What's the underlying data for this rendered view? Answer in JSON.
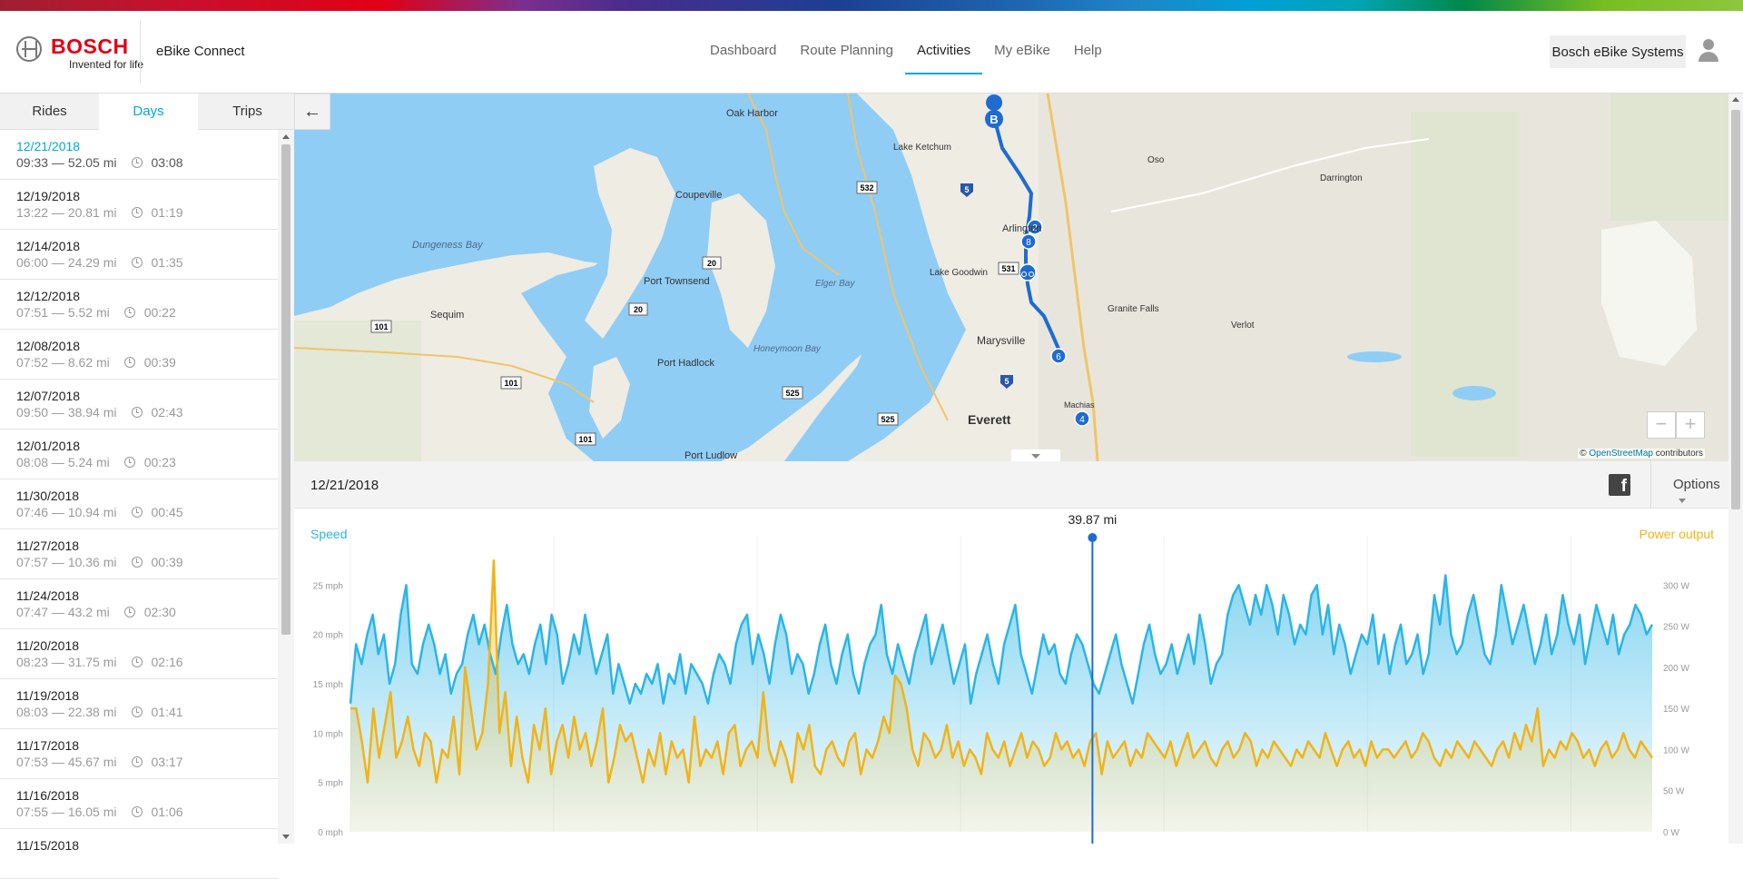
{
  "header": {
    "brand": "BOSCH",
    "tagline": "Invented for life",
    "app_name": "eBike Connect",
    "nav": [
      {
        "label": "Dashboard"
      },
      {
        "label": "Route Planning"
      },
      {
        "label": "Activities",
        "active": true
      },
      {
        "label": "My eBike"
      },
      {
        "label": "Help"
      }
    ],
    "user_button": "Bosch eBike Systems"
  },
  "sidebar": {
    "tabs": [
      {
        "label": "Rides"
      },
      {
        "label": "Days",
        "active": true
      },
      {
        "label": "Trips"
      }
    ],
    "items": [
      {
        "date": "12/21/2018",
        "info": "09:33 — 52.05 mi",
        "duration": "03:08",
        "active": true
      },
      {
        "date": "12/19/2018",
        "info": "13:22 — 20.81 mi",
        "duration": "01:19"
      },
      {
        "date": "12/14/2018",
        "info": "06:00 — 24.29 mi",
        "duration": "01:35"
      },
      {
        "date": "12/12/2018",
        "info": "07:51 — 5.52 mi",
        "duration": "00:22"
      },
      {
        "date": "12/08/2018",
        "info": "07:52 — 8.62 mi",
        "duration": "00:39"
      },
      {
        "date": "12/07/2018",
        "info": "09:50 — 38.94 mi",
        "duration": "02:43"
      },
      {
        "date": "12/01/2018",
        "info": "08:08 — 5.24 mi",
        "duration": "00:23"
      },
      {
        "date": "11/30/2018",
        "info": "07:46 — 10.94 mi",
        "duration": "00:45"
      },
      {
        "date": "11/27/2018",
        "info": "07:57 — 10.36 mi",
        "duration": "00:39"
      },
      {
        "date": "11/24/2018",
        "info": "07:47 — 43.2 mi",
        "duration": "02:30"
      },
      {
        "date": "11/20/2018",
        "info": "08:23 — 31.75 mi",
        "duration": "02:16"
      },
      {
        "date": "11/19/2018",
        "info": "08:03 — 22.38 mi",
        "duration": "01:41"
      },
      {
        "date": "11/17/2018",
        "info": "07:53 — 45.67 mi",
        "duration": "03:17"
      },
      {
        "date": "11/16/2018",
        "info": "07:55 — 16.05 mi",
        "duration": "01:06"
      },
      {
        "date": "11/15/2018",
        "info": "",
        "duration": ""
      }
    ]
  },
  "map": {
    "places": [
      {
        "name": "Oak Harbor"
      },
      {
        "name": "Coupeville"
      },
      {
        "name": "Dungeness Bay"
      },
      {
        "name": "Sequim"
      },
      {
        "name": "Port Townsend"
      },
      {
        "name": "Port Hadlock"
      },
      {
        "name": "Port Ludlow"
      },
      {
        "name": "Lake Ketchum"
      },
      {
        "name": "Arlington"
      },
      {
        "name": "Lake Goodwin"
      },
      {
        "name": "Marysville"
      },
      {
        "name": "Everett"
      },
      {
        "name": "Oso"
      },
      {
        "name": "Darrington"
      },
      {
        "name": "Granite Falls"
      },
      {
        "name": "Verlot"
      },
      {
        "name": "Elger Bay"
      },
      {
        "name": "Honeymoon Bay"
      },
      {
        "name": "Machias"
      }
    ],
    "road_shields": [
      "532",
      "5",
      "531",
      "20",
      "20",
      "101",
      "101",
      "101",
      "525",
      "525",
      "5"
    ],
    "route_markers": [
      "B",
      "2",
      "8",
      "bike",
      "6",
      "4"
    ],
    "zoom_out": "−",
    "zoom_in": "+",
    "attribution_prefix": "©",
    "attribution_link": "OpenStreetMap",
    "attribution_suffix": "contributors"
  },
  "datebar": {
    "date": "12/21/2018",
    "facebook": "f",
    "options": "Options"
  },
  "chart_data": {
    "type": "line",
    "left_label": "Speed",
    "right_label": "Power output",
    "cursor_label": "39.87 mi",
    "cursor_position": 0.57,
    "y_left": {
      "unit": "mph",
      "ticks": [
        "0 mph",
        "5 mph",
        "10 mph",
        "15 mph",
        "20 mph",
        "25 mph"
      ],
      "range": [
        0,
        30
      ]
    },
    "y_right": {
      "unit": "W",
      "ticks": [
        "0 W",
        "50 W",
        "100 W",
        "150 W",
        "200 W",
        "250 W",
        "300 W"
      ],
      "range": [
        0,
        360
      ]
    },
    "series": [
      {
        "name": "Speed",
        "color": "#2bb5e6",
        "values": [
          13,
          19,
          17,
          20,
          22,
          18,
          20,
          15,
          17,
          22,
          25,
          17,
          16,
          19,
          21,
          19,
          16,
          18,
          14,
          16,
          17,
          20,
          22,
          19,
          21,
          18,
          16,
          20,
          23,
          19,
          17,
          18,
          16,
          19,
          21,
          17,
          22,
          20,
          15,
          17,
          20,
          18,
          22,
          19,
          16,
          18,
          20,
          14,
          17,
          15,
          13,
          15,
          14,
          16,
          15,
          17,
          13,
          16,
          15,
          18,
          14,
          17,
          16,
          15,
          13,
          16,
          18,
          17,
          15,
          19,
          21,
          22,
          17,
          20,
          18,
          15,
          19,
          22,
          20,
          16,
          18,
          17,
          14,
          16,
          19,
          21,
          17,
          15,
          18,
          20,
          16,
          14,
          17,
          19,
          20,
          23,
          18,
          16,
          19,
          17,
          15,
          18,
          20,
          22,
          17,
          19,
          21,
          18,
          15,
          17,
          19,
          13,
          16,
          18,
          20,
          17,
          15,
          19,
          21,
          23,
          18,
          16,
          14,
          17,
          20,
          18,
          19,
          16,
          15,
          18,
          20,
          19,
          17,
          15,
          14,
          16,
          18,
          20,
          17,
          15,
          13,
          16,
          19,
          21,
          18,
          16,
          17,
          19,
          16,
          18,
          20,
          17,
          22,
          19,
          15,
          17,
          18,
          22,
          24,
          25,
          23,
          21,
          24,
          22,
          25,
          23,
          20,
          24,
          22,
          19,
          21,
          20,
          24,
          25,
          20,
          23,
          18,
          21,
          19,
          16,
          18,
          20,
          19,
          22,
          17,
          20,
          16,
          19,
          21,
          17,
          18,
          20,
          16,
          18,
          24,
          21,
          26,
          20,
          18,
          19,
          22,
          24,
          21,
          18,
          17,
          20,
          25,
          22,
          19,
          21,
          23,
          20,
          17,
          19,
          22,
          18,
          20,
          24,
          21,
          19,
          22,
          17,
          20,
          23,
          21,
          19,
          22,
          18,
          20,
          21,
          23,
          22,
          20,
          21
        ]
      },
      {
        "name": "Power output",
        "color": "#f0b418",
        "values": [
          150,
          150,
          110,
          60,
          150,
          90,
          130,
          170,
          90,
          110,
          140,
          100,
          80,
          120,
          110,
          60,
          100,
          90,
          140,
          70,
          200,
          150,
          100,
          120,
          180,
          330,
          120,
          170,
          80,
          140,
          90,
          60,
          130,
          100,
          150,
          70,
          110,
          130,
          90,
          140,
          100,
          120,
          80,
          110,
          150,
          60,
          90,
          130,
          110,
          120,
          90,
          60,
          100,
          80,
          120,
          70,
          110,
          90,
          100,
          60,
          140,
          80,
          100,
          90,
          110,
          70,
          120,
          130,
          80,
          100,
          110,
          90,
          170,
          100,
          80,
          110,
          90,
          60,
          120,
          100,
          130,
          80,
          70,
          100,
          110,
          90,
          80,
          110,
          120,
          70,
          100,
          90,
          110,
          140,
          120,
          190,
          180,
          150,
          100,
          80,
          120,
          110,
          90,
          100,
          130,
          90,
          110,
          80,
          100,
          90,
          70,
          120,
          100,
          90,
          110,
          80,
          100,
          120,
          90,
          110,
          100,
          80,
          90,
          120,
          100,
          110,
          90,
          100,
          80,
          110,
          120,
          70,
          110,
          90,
          100,
          110,
          80,
          100,
          90,
          120,
          110,
          100,
          90,
          110,
          80,
          100,
          120,
          90,
          100,
          110,
          90,
          80,
          100,
          110,
          90,
          100,
          120,
          110,
          80,
          100,
          90,
          110,
          100,
          90,
          80,
          100,
          90,
          110,
          100,
          90,
          120,
          100,
          80,
          100,
          110,
          90,
          100,
          80,
          110,
          90,
          100,
          100,
          90,
          100,
          110,
          90,
          100,
          120,
          110,
          90,
          80,
          100,
          90,
          110,
          100,
          90,
          110,
          100,
          90,
          80,
          100,
          110,
          90,
          120,
          100,
          130,
          110,
          150,
          80,
          100,
          90,
          110,
          100,
          120,
          110,
          90,
          100,
          80,
          100,
          110,
          90,
          100,
          120,
          100,
          90,
          110,
          100,
          90
        ]
      }
    ]
  }
}
